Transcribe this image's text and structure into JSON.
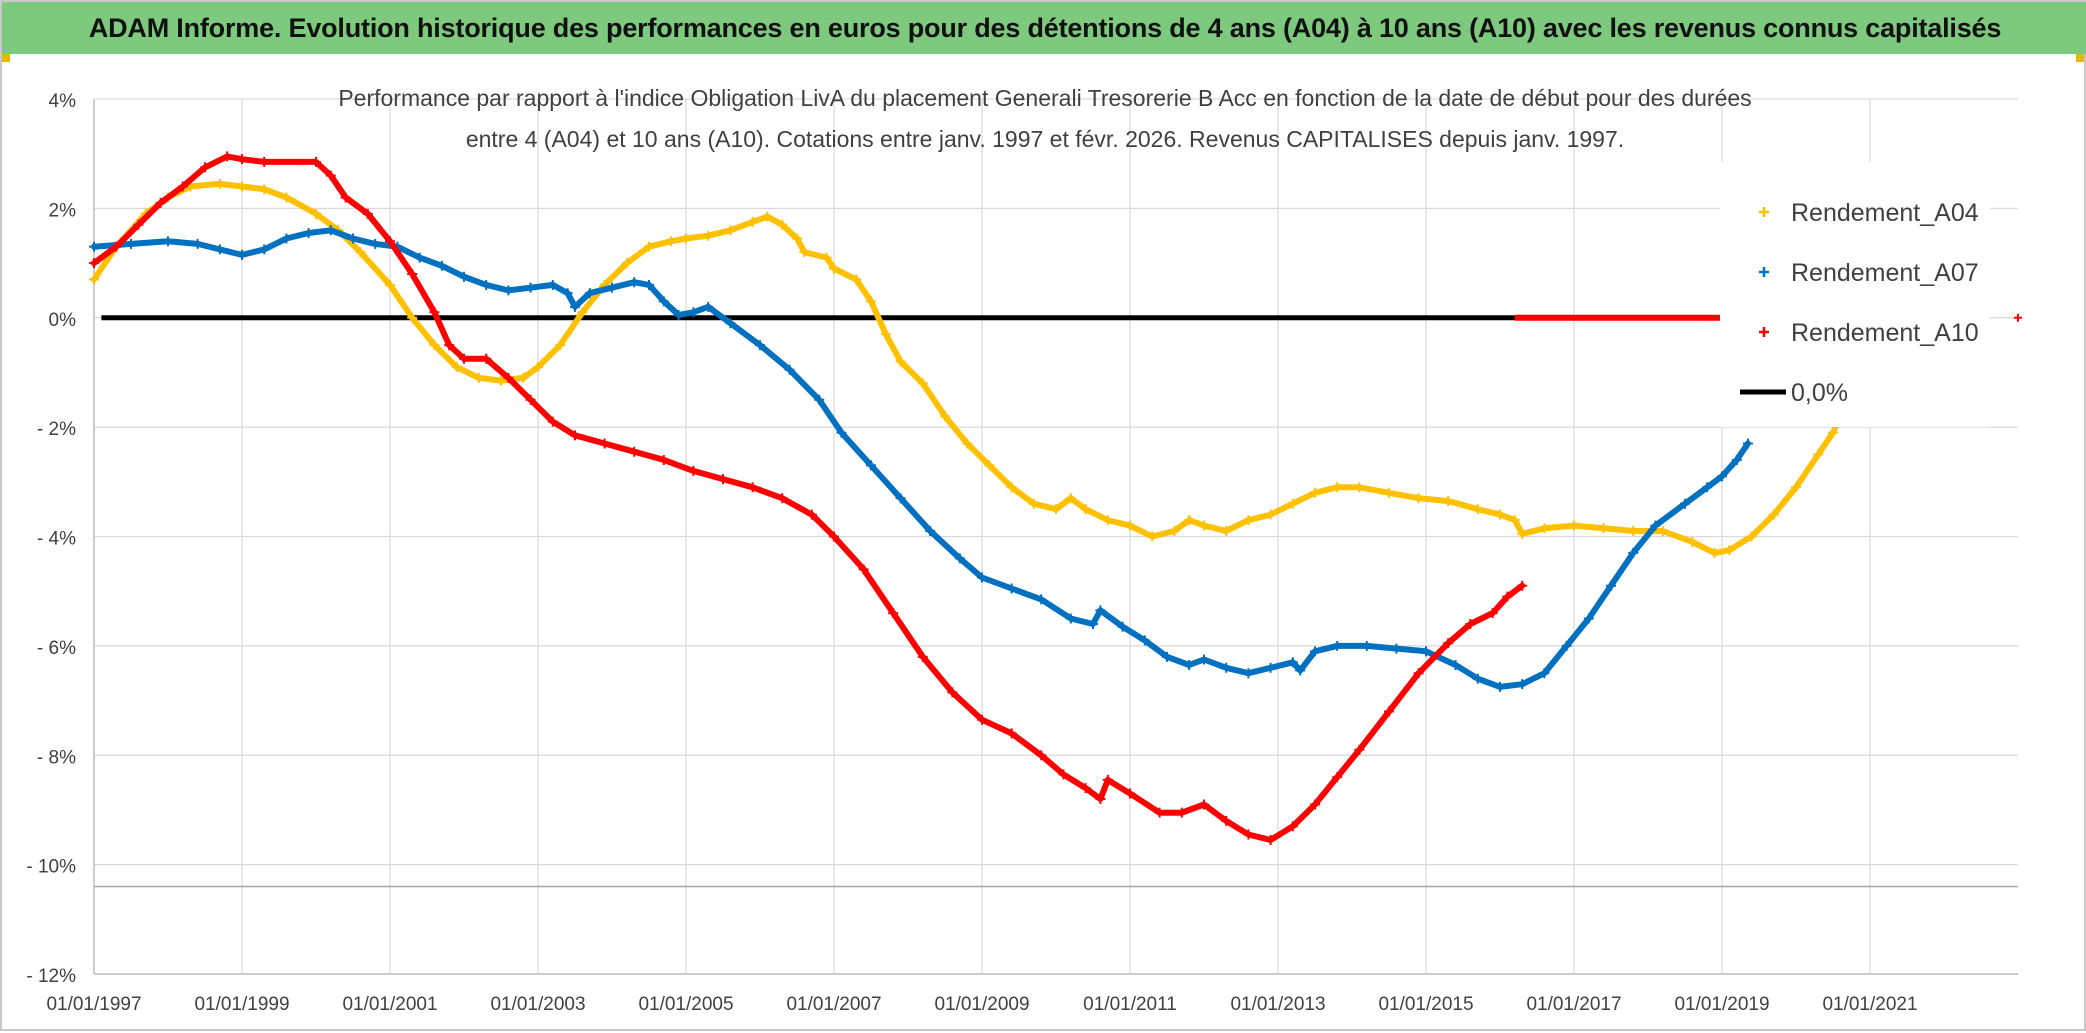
{
  "banner": {
    "title": "ADAM Informe. Evolution historique des performances en euros pour des détentions de 4 ans (A04) à 10 ans (A10) avec les revenus connus capitalisés"
  },
  "colors": {
    "banner_bg": "#7dc97d",
    "a04": "#FFC000",
    "a07": "#0070C0",
    "a10": "#FF0000",
    "zero": "#000000",
    "grid": "#d9d9d9"
  },
  "chart_data": {
    "type": "scatter",
    "title_line1": "Performance par rapport à l'indice Obligation LivA  du placement Generali Tresorerie B Acc en fonction de la date de début pour des durées",
    "title_line2": "entre 4 (A04) et 10 ans (A10). Cotations entre janv. 1997 et févr. 2026. Revenus CAPITALISES depuis janv. 1997.",
    "xlabel": "",
    "ylabel": "",
    "xlim": [
      1997.0,
      2023.0
    ],
    "ylim": [
      -12,
      4
    ],
    "x_ticks": [
      {
        "value": 1997,
        "label": "01/01/1997"
      },
      {
        "value": 1999,
        "label": "01/01/1999"
      },
      {
        "value": 2001,
        "label": "01/01/2001"
      },
      {
        "value": 2003,
        "label": "01/01/2003"
      },
      {
        "value": 2005,
        "label": "01/01/2005"
      },
      {
        "value": 2007,
        "label": "01/01/2007"
      },
      {
        "value": 2009,
        "label": "01/01/2009"
      },
      {
        "value": 2011,
        "label": "01/01/2011"
      },
      {
        "value": 2013,
        "label": "01/01/2013"
      },
      {
        "value": 2015,
        "label": "01/01/2015"
      },
      {
        "value": 2017,
        "label": "01/01/2017"
      },
      {
        "value": 2019,
        "label": "01/01/2019"
      },
      {
        "value": 2021,
        "label": "01/01/2021"
      }
    ],
    "y_ticks": [
      {
        "value": 4,
        "label": "4%"
      },
      {
        "value": 2,
        "label": "2%"
      },
      {
        "value": 0,
        "label": "0%"
      },
      {
        "value": -2,
        "label": "- 2%"
      },
      {
        "value": -4,
        "label": "- 4%"
      },
      {
        "value": -6,
        "label": "- 6%"
      },
      {
        "value": -8,
        "label": "- 8%"
      },
      {
        "value": -10,
        "label": "- 10%"
      },
      {
        "value": -12,
        "label": "- 12%"
      }
    ],
    "secondary_hline": -10.4,
    "legend_position": "right",
    "legend": [
      "Rendement_A04",
      "Rendement_A07",
      "Rendement_A10",
      "0,0%"
    ],
    "series": [
      {
        "name": "Rendement_A04",
        "color_key": "a04",
        "points": [
          [
            1997.0,
            0.7
          ],
          [
            1997.3,
            1.3
          ],
          [
            1997.7,
            1.9
          ],
          [
            1998.0,
            2.2
          ],
          [
            1998.3,
            2.4
          ],
          [
            1998.7,
            2.45
          ],
          [
            1999.0,
            2.4
          ],
          [
            1999.3,
            2.35
          ],
          [
            1999.6,
            2.2
          ],
          [
            2000.0,
            1.9
          ],
          [
            2000.3,
            1.6
          ],
          [
            2000.6,
            1.2
          ],
          [
            2001.0,
            0.6
          ],
          [
            2001.3,
            0.0
          ],
          [
            2001.6,
            -0.5
          ],
          [
            2001.9,
            -0.9
          ],
          [
            2002.2,
            -1.1
          ],
          [
            2002.5,
            -1.15
          ],
          [
            2002.8,
            -1.1
          ],
          [
            2003.0,
            -0.9
          ],
          [
            2003.3,
            -0.5
          ],
          [
            2003.6,
            0.1
          ],
          [
            2003.9,
            0.6
          ],
          [
            2004.2,
            1.0
          ],
          [
            2004.5,
            1.3
          ],
          [
            2004.8,
            1.4
          ],
          [
            2005.0,
            1.45
          ],
          [
            2005.3,
            1.5
          ],
          [
            2005.6,
            1.6
          ],
          [
            2005.9,
            1.75
          ],
          [
            2006.1,
            1.85
          ],
          [
            2006.3,
            1.7
          ],
          [
            2006.5,
            1.45
          ],
          [
            2006.6,
            1.2
          ],
          [
            2006.9,
            1.1
          ],
          [
            2007.0,
            0.9
          ],
          [
            2007.3,
            0.7
          ],
          [
            2007.5,
            0.3
          ],
          [
            2007.7,
            -0.3
          ],
          [
            2007.9,
            -0.8
          ],
          [
            2008.2,
            -1.2
          ],
          [
            2008.5,
            -1.8
          ],
          [
            2008.8,
            -2.3
          ],
          [
            2009.1,
            -2.7
          ],
          [
            2009.4,
            -3.1
          ],
          [
            2009.7,
            -3.4
          ],
          [
            2010.0,
            -3.5
          ],
          [
            2010.2,
            -3.3
          ],
          [
            2010.4,
            -3.5
          ],
          [
            2010.7,
            -3.7
          ],
          [
            2011.0,
            -3.8
          ],
          [
            2011.3,
            -4.0
          ],
          [
            2011.6,
            -3.9
          ],
          [
            2011.8,
            -3.7
          ],
          [
            2012.0,
            -3.8
          ],
          [
            2012.3,
            -3.9
          ],
          [
            2012.6,
            -3.7
          ],
          [
            2012.9,
            -3.6
          ],
          [
            2013.2,
            -3.4
          ],
          [
            2013.5,
            -3.2
          ],
          [
            2013.8,
            -3.1
          ],
          [
            2014.1,
            -3.1
          ],
          [
            2014.5,
            -3.2
          ],
          [
            2014.9,
            -3.3
          ],
          [
            2015.3,
            -3.35
          ],
          [
            2015.7,
            -3.5
          ],
          [
            2016.0,
            -3.6
          ],
          [
            2016.2,
            -3.7
          ],
          [
            2016.3,
            -3.95
          ],
          [
            2016.6,
            -3.85
          ],
          [
            2017.0,
            -3.8
          ],
          [
            2017.4,
            -3.85
          ],
          [
            2017.8,
            -3.9
          ],
          [
            2018.2,
            -3.9
          ],
          [
            2018.6,
            -4.1
          ],
          [
            2018.9,
            -4.3
          ],
          [
            2019.1,
            -4.25
          ],
          [
            2019.4,
            -4.0
          ],
          [
            2019.7,
            -3.6
          ],
          [
            2020.0,
            -3.1
          ],
          [
            2020.3,
            -2.5
          ],
          [
            2020.5,
            -2.1
          ],
          [
            2020.6,
            -1.8
          ]
        ]
      },
      {
        "name": "Rendement_A07",
        "color_key": "a07",
        "points": [
          [
            1997.0,
            1.3
          ],
          [
            1997.5,
            1.35
          ],
          [
            1998.0,
            1.4
          ],
          [
            1998.4,
            1.35
          ],
          [
            1998.7,
            1.25
          ],
          [
            1999.0,
            1.15
          ],
          [
            1999.3,
            1.25
          ],
          [
            1999.6,
            1.45
          ],
          [
            1999.9,
            1.55
          ],
          [
            2000.2,
            1.6
          ],
          [
            2000.5,
            1.45
          ],
          [
            2000.8,
            1.35
          ],
          [
            2001.1,
            1.3
          ],
          [
            2001.4,
            1.1
          ],
          [
            2001.7,
            0.95
          ],
          [
            2002.0,
            0.75
          ],
          [
            2002.3,
            0.6
          ],
          [
            2002.6,
            0.5
          ],
          [
            2002.9,
            0.55
          ],
          [
            2003.2,
            0.6
          ],
          [
            2003.4,
            0.45
          ],
          [
            2003.5,
            0.2
          ],
          [
            2003.7,
            0.45
          ],
          [
            2004.0,
            0.55
          ],
          [
            2004.3,
            0.65
          ],
          [
            2004.5,
            0.6
          ],
          [
            2004.7,
            0.3
          ],
          [
            2004.9,
            0.05
          ],
          [
            2005.1,
            0.1
          ],
          [
            2005.3,
            0.2
          ],
          [
            2005.6,
            -0.1
          ],
          [
            2006.0,
            -0.5
          ],
          [
            2006.4,
            -0.95
          ],
          [
            2006.8,
            -1.5
          ],
          [
            2007.1,
            -2.1
          ],
          [
            2007.5,
            -2.7
          ],
          [
            2007.9,
            -3.3
          ],
          [
            2008.3,
            -3.9
          ],
          [
            2008.7,
            -4.4
          ],
          [
            2009.0,
            -4.75
          ],
          [
            2009.4,
            -4.95
          ],
          [
            2009.8,
            -5.15
          ],
          [
            2010.2,
            -5.5
          ],
          [
            2010.5,
            -5.6
          ],
          [
            2010.6,
            -5.35
          ],
          [
            2010.9,
            -5.65
          ],
          [
            2011.2,
            -5.9
          ],
          [
            2011.5,
            -6.2
          ],
          [
            2011.8,
            -6.35
          ],
          [
            2012.0,
            -6.25
          ],
          [
            2012.3,
            -6.4
          ],
          [
            2012.6,
            -6.5
          ],
          [
            2012.9,
            -6.4
          ],
          [
            2013.2,
            -6.3
          ],
          [
            2013.3,
            -6.45
          ],
          [
            2013.5,
            -6.1
          ],
          [
            2013.8,
            -6.0
          ],
          [
            2014.2,
            -6.0
          ],
          [
            2014.6,
            -6.05
          ],
          [
            2015.0,
            -6.1
          ],
          [
            2015.4,
            -6.35
          ],
          [
            2015.7,
            -6.6
          ],
          [
            2016.0,
            -6.75
          ],
          [
            2016.3,
            -6.7
          ],
          [
            2016.6,
            -6.5
          ],
          [
            2016.9,
            -6.0
          ],
          [
            2017.2,
            -5.5
          ],
          [
            2017.5,
            -4.9
          ],
          [
            2017.8,
            -4.3
          ],
          [
            2018.1,
            -3.8
          ],
          [
            2018.5,
            -3.4
          ],
          [
            2018.8,
            -3.1
          ],
          [
            2019.0,
            -2.9
          ],
          [
            2019.2,
            -2.6
          ],
          [
            2019.35,
            -2.3
          ]
        ]
      },
      {
        "name": "Rendement_A10",
        "color_key": "a10",
        "points": [
          [
            1997.0,
            1.0
          ],
          [
            1997.3,
            1.3
          ],
          [
            1997.6,
            1.7
          ],
          [
            1997.9,
            2.1
          ],
          [
            1998.2,
            2.4
          ],
          [
            1998.5,
            2.75
          ],
          [
            1998.8,
            2.95
          ],
          [
            1999.0,
            2.9
          ],
          [
            1999.3,
            2.85
          ],
          [
            2000.0,
            2.85
          ],
          [
            2000.2,
            2.6
          ],
          [
            2000.4,
            2.2
          ],
          [
            2000.7,
            1.9
          ],
          [
            2001.0,
            1.4
          ],
          [
            2001.3,
            0.8
          ],
          [
            2001.6,
            0.1
          ],
          [
            2001.8,
            -0.5
          ],
          [
            2002.0,
            -0.75
          ],
          [
            2002.3,
            -0.75
          ],
          [
            2002.6,
            -1.1
          ],
          [
            2002.9,
            -1.5
          ],
          [
            2003.2,
            -1.9
          ],
          [
            2003.5,
            -2.15
          ],
          [
            2003.9,
            -2.3
          ],
          [
            2004.3,
            -2.45
          ],
          [
            2004.7,
            -2.6
          ],
          [
            2005.1,
            -2.8
          ],
          [
            2005.5,
            -2.95
          ],
          [
            2005.9,
            -3.1
          ],
          [
            2006.3,
            -3.3
          ],
          [
            2006.7,
            -3.6
          ],
          [
            2007.0,
            -4.0
          ],
          [
            2007.4,
            -4.6
          ],
          [
            2007.8,
            -5.4
          ],
          [
            2008.2,
            -6.2
          ],
          [
            2008.6,
            -6.85
          ],
          [
            2009.0,
            -7.35
          ],
          [
            2009.4,
            -7.6
          ],
          [
            2009.8,
            -8.0
          ],
          [
            2010.1,
            -8.35
          ],
          [
            2010.4,
            -8.6
          ],
          [
            2010.6,
            -8.8
          ],
          [
            2010.7,
            -8.45
          ],
          [
            2011.0,
            -8.7
          ],
          [
            2011.4,
            -9.05
          ],
          [
            2011.7,
            -9.05
          ],
          [
            2012.0,
            -8.9
          ],
          [
            2012.3,
            -9.2
          ],
          [
            2012.6,
            -9.45
          ],
          [
            2012.9,
            -9.55
          ],
          [
            2013.2,
            -9.3
          ],
          [
            2013.5,
            -8.9
          ],
          [
            2013.8,
            -8.4
          ],
          [
            2014.1,
            -7.9
          ],
          [
            2014.5,
            -7.2
          ],
          [
            2014.9,
            -6.5
          ],
          [
            2015.3,
            -5.95
          ],
          [
            2015.6,
            -5.6
          ],
          [
            2015.9,
            -5.4
          ],
          [
            2016.1,
            -5.1
          ],
          [
            2016.3,
            -4.9
          ]
        ]
      }
    ],
    "a10_zero_segment": [
      2016.2,
      2019.2
    ],
    "zero_line": {
      "name": "0,0%",
      "value": 0,
      "x_range": [
        1997.1,
        2019.2
      ]
    }
  }
}
